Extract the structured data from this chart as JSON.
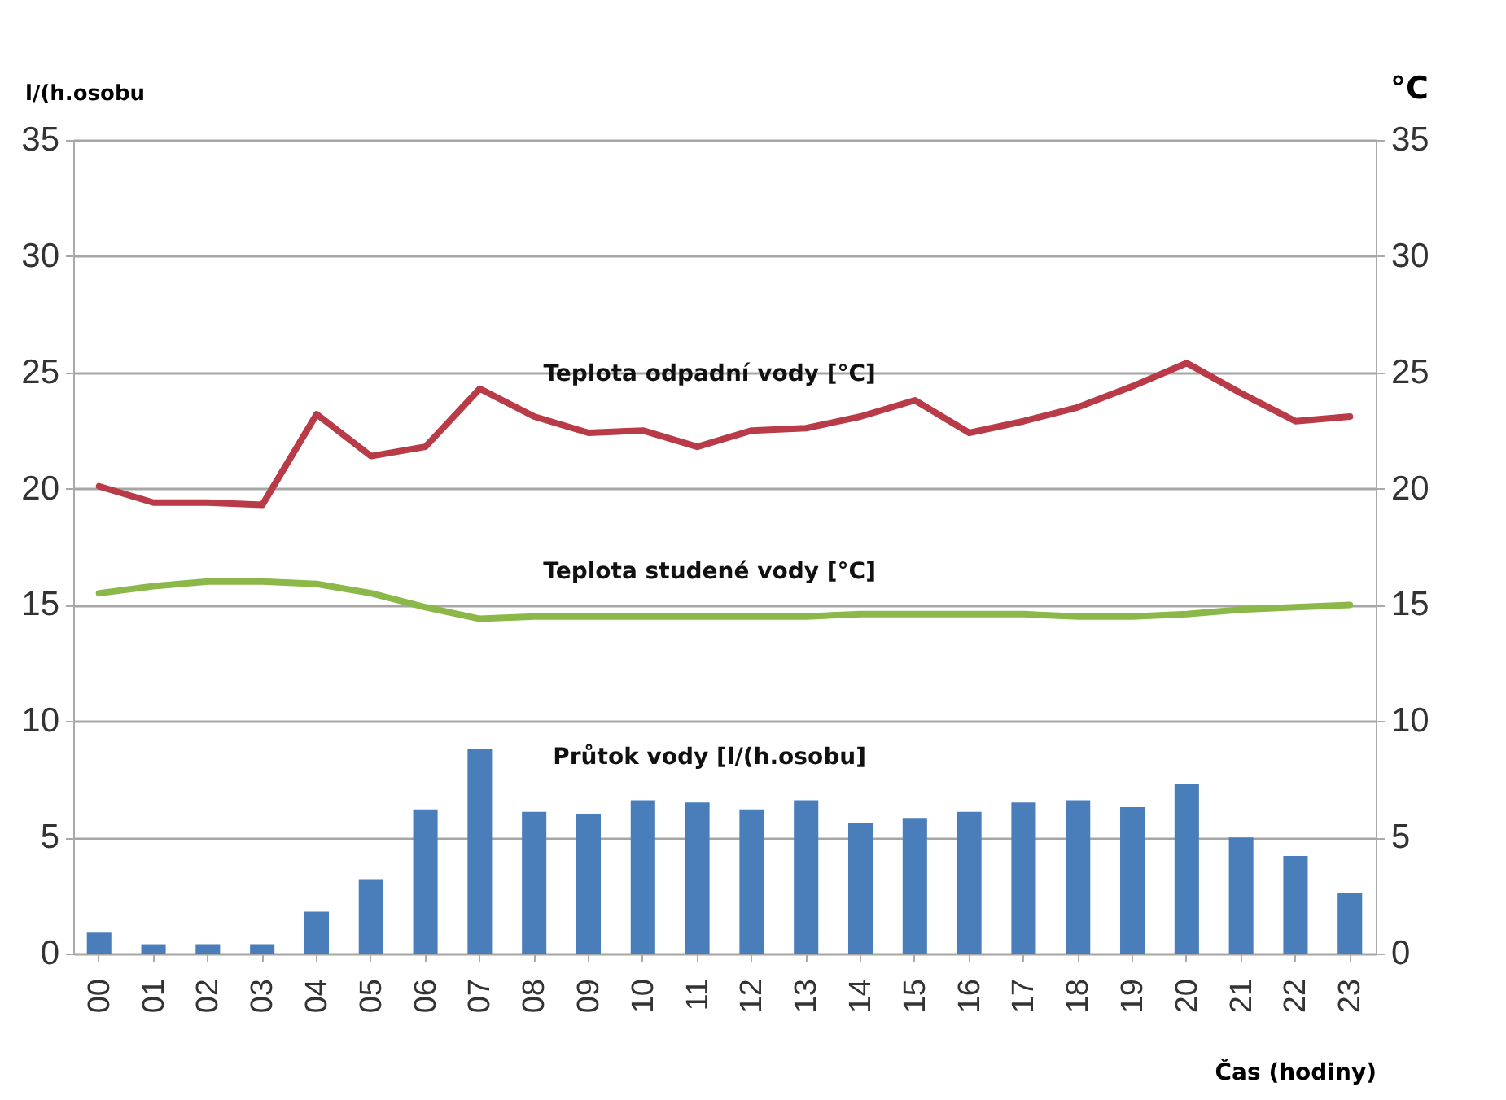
{
  "chart_data": {
    "type": "bar",
    "categories": [
      "00",
      "01",
      "02",
      "03",
      "04",
      "05",
      "06",
      "07",
      "08",
      "09",
      "10",
      "11",
      "12",
      "13",
      "14",
      "15",
      "16",
      "17",
      "18",
      "19",
      "20",
      "21",
      "22",
      "23"
    ],
    "series": [
      {
        "name": "Průtok vody [l/(h.osobu]",
        "color": "#4a7ebb",
        "values": [
          0.9,
          0.4,
          0.4,
          0.4,
          1.8,
          3.2,
          6.2,
          8.8,
          6.1,
          6.0,
          6.6,
          6.5,
          6.2,
          6.6,
          5.6,
          5.8,
          6.1,
          6.5,
          6.6,
          6.3,
          7.3,
          5.0,
          4.2,
          2.6
        ]
      },
      {
        "name": "Teplota studené vody [°C]",
        "type": "line",
        "color": "#8cb84a",
        "values": [
          15.5,
          15.8,
          16.0,
          16.0,
          15.9,
          15.5,
          14.9,
          14.4,
          14.5,
          14.5,
          14.5,
          14.5,
          14.5,
          14.5,
          14.6,
          14.6,
          14.6,
          14.6,
          14.5,
          14.5,
          14.6,
          14.8,
          14.9,
          15.0
        ]
      },
      {
        "name": "Teplota odpadní vody [°C]",
        "type": "line",
        "axis": "y2",
        "color": "#b83b47",
        "values": [
          20.1,
          19.4,
          19.4,
          19.3,
          23.2,
          21.4,
          21.8,
          24.3,
          23.1,
          22.4,
          22.5,
          21.8,
          22.5,
          22.6,
          23.1,
          23.8,
          22.4,
          22.9,
          23.5,
          24.4,
          25.4,
          24.1,
          22.9,
          23.1
        ]
      }
    ],
    "ylabel": "l/(h.osobu",
    "y2label": "°C",
    "xlabel": "Čas (hodiny)",
    "ylim": [
      0,
      35
    ],
    "yticks": [
      0,
      5,
      10,
      15,
      20,
      25,
      30,
      35
    ],
    "y2lim": [
      0,
      35
    ],
    "y2ticks": [
      0,
      5,
      10,
      15,
      20,
      25,
      30,
      35
    ],
    "grid": "y"
  }
}
